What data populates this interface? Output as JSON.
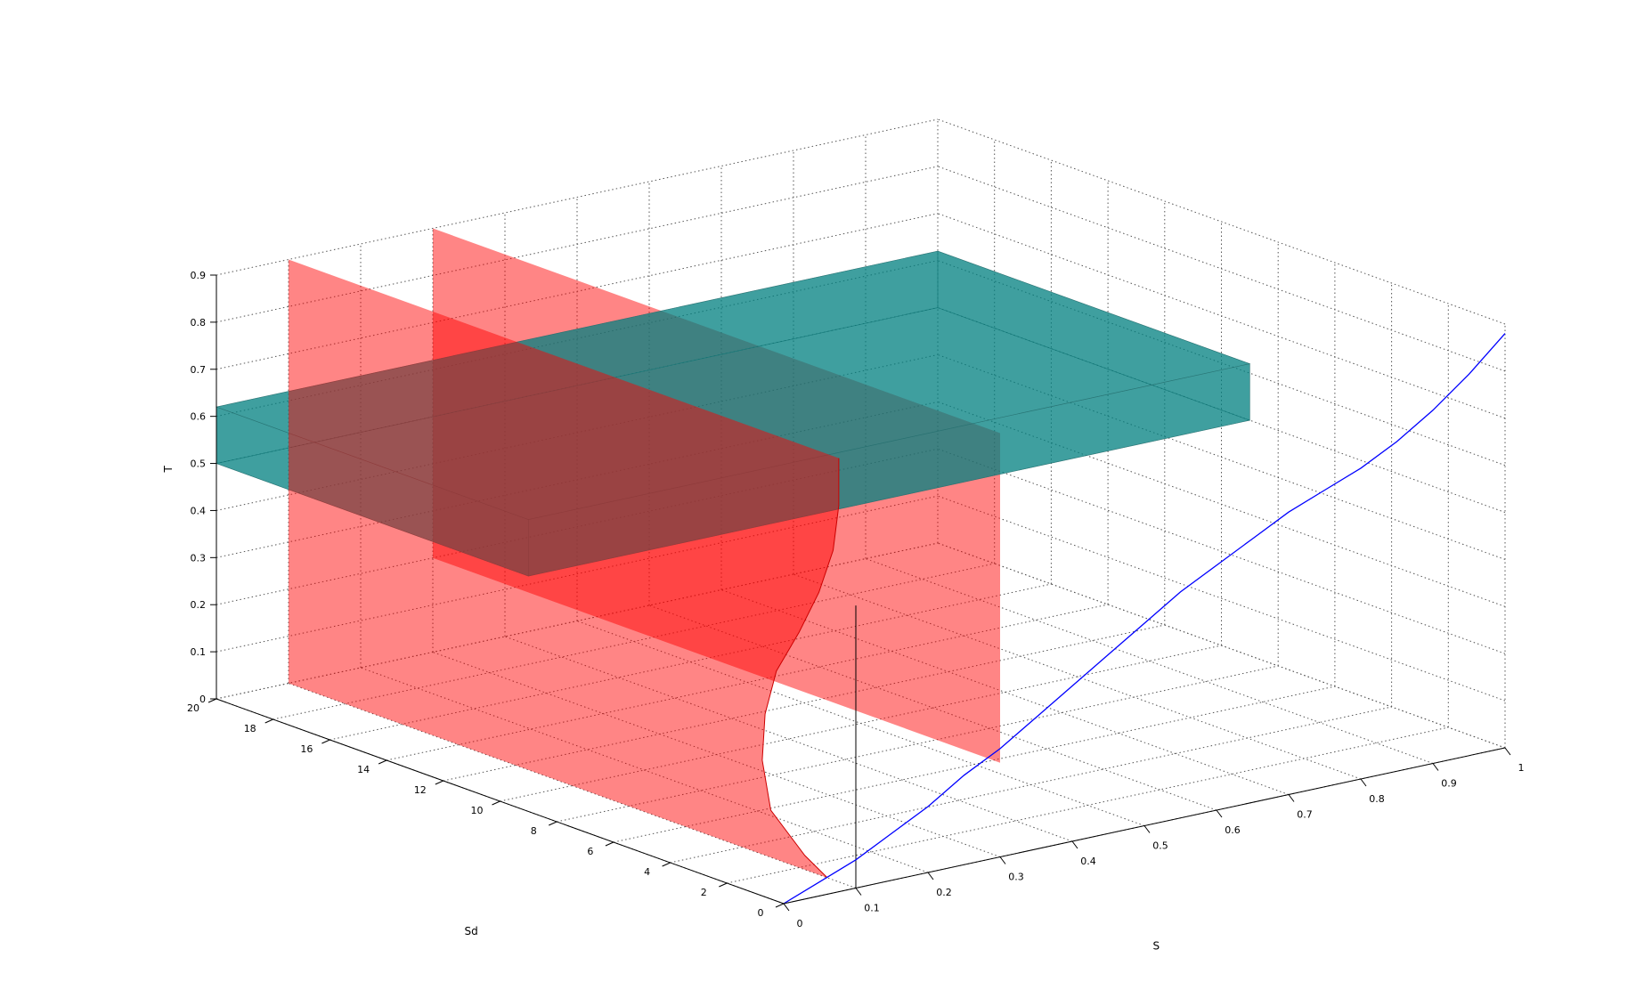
{
  "chart_data": {
    "type": "3d-surface",
    "xlabel": "S",
    "ylabel": "Sd",
    "zlabel": "T",
    "xlim": [
      0,
      1
    ],
    "ylim": [
      0,
      20
    ],
    "zlim": [
      0,
      0.9
    ],
    "x_ticks": [
      "0",
      "0.1",
      "0.2",
      "0.3",
      "0.4",
      "0.5",
      "0.6",
      "0.7",
      "0.8",
      "0.9",
      "1"
    ],
    "y_ticks": [
      "0",
      "2",
      "4",
      "6",
      "8",
      "10",
      "12",
      "14",
      "16",
      "18",
      "20"
    ],
    "z_ticks": [
      "0",
      "0.1",
      "0.2",
      "0.3",
      "0.4",
      "0.5",
      "0.6",
      "0.7",
      "0.8",
      "0.9"
    ],
    "grid": true,
    "colors": {
      "red_surface": "#ff0000",
      "teal_box": "#008080",
      "curve": "#0000ff",
      "vertical_line": "#000000"
    },
    "series": [
      {
        "kind": "curve",
        "S": [
          0,
          0.05,
          0.1,
          0.15,
          0.2,
          0.25,
          0.3,
          0.35,
          0.4,
          0.45,
          0.5,
          0.55,
          0.6,
          0.65,
          0.7,
          0.75,
          0.8,
          0.85,
          0.9,
          0.95,
          1.0
        ],
        "T": [
          0.0,
          0.03,
          0.06,
          0.1,
          0.14,
          0.19,
          0.23,
          0.28,
          0.33,
          0.38,
          0.43,
          0.48,
          0.52,
          0.56,
          0.6,
          0.63,
          0.66,
          0.7,
          0.75,
          0.81,
          0.88
        ]
      },
      {
        "kind": "box",
        "S_range": [
          0,
          1
        ],
        "Sd_range": [
          9,
          20
        ],
        "T_range": [
          0.5,
          0.62
        ]
      },
      {
        "kind": "surface",
        "S": 0.1,
        "Sd_range": [
          0,
          20
        ],
        "T": [
          0.0,
          0.03,
          0.1,
          0.2,
          0.3,
          0.4,
          0.5,
          0.6,
          0.7,
          0.8,
          0.9
        ],
        "Sd_edge": [
          1.0,
          1.8,
          3.0,
          3.3,
          3.2,
          2.8,
          2.0,
          1.3,
          0.8,
          0.6,
          0.6
        ]
      },
      {
        "kind": "surface",
        "S": 0.3,
        "Sd_range": [
          0,
          20
        ],
        "T_range": [
          0.2,
          0.9
        ]
      },
      {
        "kind": "line",
        "S": 0.1,
        "Sd": 0,
        "T_range": [
          0.0,
          0.6
        ]
      }
    ]
  }
}
